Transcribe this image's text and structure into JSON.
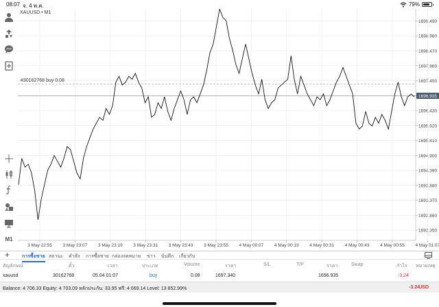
{
  "status_bar": {
    "time": "08:07",
    "date": "จ. 4 พ.ค.",
    "battery": "79%",
    "battery_level": 0.79
  },
  "chart": {
    "title": "XAUUSD • M1",
    "order_label": "#30162768 buy 0.08",
    "current_price": "1696.935",
    "price_ticks": [
      "1699.490",
      "1698.980",
      "1698.470",
      "1697.960",
      "1697.450",
      "1696.940",
      "1696.430",
      "1695.920",
      "1695.410",
      "1694.900",
      "1694.390",
      "1693.880",
      "1693.370",
      "1692.860",
      "1692.350"
    ],
    "time_ticks": [
      "3 May 22:55",
      "3 May 23:07",
      "3 May 23:19",
      "3 May 23:31",
      "3 May 23:43",
      "3 May 23:55",
      "4 May 00:07",
      "4 May 00:19",
      "4 May 00:31",
      "4 May 00:43",
      "4 May 00:55",
      "4 May 01:07"
    ],
    "colors": {
      "line": "#111111",
      "grid": "#e8e8e8",
      "price_box": "#4a5a6a"
    }
  },
  "chart_data": {
    "type": "line",
    "title": "XAUUSD • M1",
    "ylim": [
      1692.0,
      1699.9
    ],
    "xlabel": "",
    "ylabel": "",
    "series": [
      {
        "values": [
          1693.9,
          1694.8,
          1694.5,
          1694.6,
          1694.3,
          1693.7,
          1692.7,
          1693.4,
          1693.9,
          1694.4,
          1694.6,
          1694.9,
          1694.7,
          1694.5,
          1694.8,
          1695.2,
          1695.1,
          1694.7,
          1694.3,
          1694.1,
          1694.8,
          1695.2,
          1695.5,
          1695.8,
          1696.0,
          1696.2,
          1696.1,
          1696.5,
          1696.3,
          1696.6,
          1697.4,
          1697.6,
          1697.3,
          1697.4,
          1697.6,
          1697.5,
          1697.7,
          1697.4,
          1697.2,
          1696.7,
          1696.9,
          1696.2,
          1696.3,
          1696.7,
          1696.5,
          1696.9,
          1696.4,
          1696.1,
          1696.5,
          1696.8,
          1697.1,
          1696.8,
          1696.3,
          1696.8,
          1696.9,
          1696.7,
          1697.0,
          1697.3,
          1697.8,
          1698.4,
          1698.7,
          1699.3,
          1699.9,
          1699.6,
          1699.5,
          1698.9,
          1698.5,
          1698.0,
          1697.7,
          1698.2,
          1698.7,
          1698.2,
          1697.7,
          1697.3,
          1697.0,
          1697.5,
          1696.8,
          1696.5,
          1696.7,
          1696.8,
          1697.2,
          1697.3,
          1697.4,
          1697.5,
          1698.3,
          1697.5,
          1697.0,
          1697.6,
          1697.3,
          1697.0,
          1696.8,
          1696.6,
          1696.9,
          1696.8,
          1697.0,
          1696.6,
          1696.8,
          1697.1,
          1697.4,
          1697.6,
          1697.9,
          1697.6,
          1697.3,
          1697.0,
          1696.0,
          1695.8,
          1695.9,
          1696.4,
          1696.0,
          1695.9,
          1696.2,
          1696.0,
          1696.3,
          1696.1,
          1695.8,
          1696.4,
          1697.0,
          1697.4,
          1696.9,
          1696.6,
          1696.9,
          1697.0,
          1696.9
        ]
      }
    ]
  },
  "tabs": [
    "การซื้อขาย",
    "สถานะ",
    "คำสั่ง",
    "การซื้อขาย",
    "กล่องจดหมาย",
    "ข่าว",
    "บันทึก",
    "เกี่ยวกับ"
  ],
  "table": {
    "headers": {
      "symbol": "สัญลักษณ์",
      "ticket": "ตั๋ว",
      "time": "เวลา",
      "type": "ประเภท",
      "volume": "Volume",
      "price": "ราคา",
      "sl": "S/L",
      "tp": "T/P",
      "price2": "ราคา",
      "swap": "Swap",
      "profit": "กำไร",
      "comment": "หมายเหตุ"
    },
    "row": {
      "symbol": "xauusd",
      "ticket": "30162768",
      "time": "05.04 01:07",
      "type": "buy",
      "volume": "0.08",
      "open_price": "1697.340",
      "current_price": "1696.935",
      "profit": "-3.24"
    }
  },
  "balance": {
    "text": "Balance: 4 706.33 Equity: 4 703.09 หลักประกัน: 33.95 ฟรี: 4 669.14 Level: 13 852.99%",
    "pl": "-3.24",
    "currency": "USD"
  },
  "icons": [
    "user-icon",
    "trade-icon",
    "chat-icon",
    "add-document-icon",
    "crosshair-icon",
    "candle-icon",
    "function-icon",
    "objects-icon",
    "templates-icon",
    "timeframe-label",
    "plus-icon",
    "screen-mode-icon",
    "wifi-icon",
    "battery-icon"
  ],
  "toolbar": {
    "timeframe_label": "M1"
  }
}
